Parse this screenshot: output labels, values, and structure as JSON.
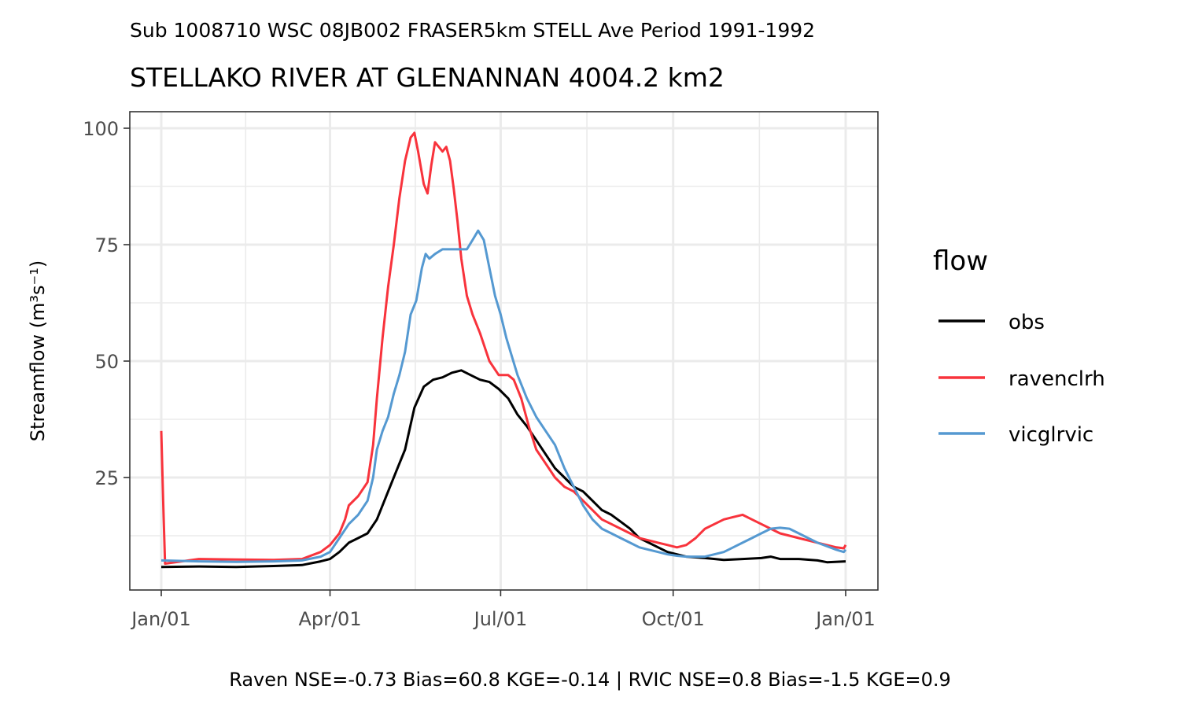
{
  "chart_data": {
    "type": "line",
    "subtitle": "Sub 1008710 WSC 08JB002 FRASER5km STELL Ave Period 1991-1992",
    "title": "STELLAKO RIVER AT GLENANNAN 4004.2 km2",
    "ylabel": "Streamflow (m³s⁻¹)",
    "xlabel": "",
    "caption": "Raven NSE=-0.73 Bias=60.8 KGE=-0.14 | RVIC NSE=0.8 Bias=-1.5 KGE=0.9",
    "xlim": [
      "Jan/01",
      "Jan/01"
    ],
    "x_ticks": [
      "Jan/01",
      "Apr/01",
      "Jul/01",
      "Oct/01",
      "Jan/01"
    ],
    "ylim": [
      0,
      100
    ],
    "y_ticks": [
      25,
      50,
      75,
      100
    ],
    "grid": true,
    "legend_title": "flow",
    "legend_position": "right",
    "series": [
      {
        "name": "obs",
        "color": "#000000",
        "points": [
          [
            0,
            5.8
          ],
          [
            20,
            5.9
          ],
          [
            40,
            5.8
          ],
          [
            60,
            6.0
          ],
          [
            75,
            6.2
          ],
          [
            85,
            7.0
          ],
          [
            90,
            7.5
          ],
          [
            95,
            9
          ],
          [
            100,
            11
          ],
          [
            105,
            12
          ],
          [
            110,
            13
          ],
          [
            115,
            16
          ],
          [
            120,
            21
          ],
          [
            125,
            26
          ],
          [
            130,
            31
          ],
          [
            135,
            40
          ],
          [
            140,
            44.5
          ],
          [
            145,
            46
          ],
          [
            150,
            46.5
          ],
          [
            155,
            47.5
          ],
          [
            160,
            48
          ],
          [
            165,
            47
          ],
          [
            170,
            46
          ],
          [
            175,
            45.5
          ],
          [
            180,
            44
          ],
          [
            185,
            42
          ],
          [
            190,
            38.5
          ],
          [
            195,
            36
          ],
          [
            200,
            33
          ],
          [
            205,
            30
          ],
          [
            210,
            27
          ],
          [
            215,
            25
          ],
          [
            220,
            23
          ],
          [
            225,
            22
          ],
          [
            230,
            20
          ],
          [
            235,
            18
          ],
          [
            240,
            17
          ],
          [
            245,
            15.5
          ],
          [
            250,
            14
          ],
          [
            255,
            12
          ],
          [
            260,
            11
          ],
          [
            265,
            10
          ],
          [
            270,
            9
          ],
          [
            275,
            8.5
          ],
          [
            280,
            8
          ],
          [
            290,
            7.7
          ],
          [
            300,
            7.3
          ],
          [
            310,
            7.5
          ],
          [
            320,
            7.7
          ],
          [
            325,
            8
          ],
          [
            330,
            7.5
          ],
          [
            340,
            7.5
          ],
          [
            350,
            7.2
          ],
          [
            355,
            6.8
          ],
          [
            365,
            7.0
          ]
        ]
      },
      {
        "name": "ravenclrh",
        "color": "#F8333C",
        "points": [
          [
            0,
            35
          ],
          [
            1,
            20
          ],
          [
            2,
            6.5
          ],
          [
            20,
            7.5
          ],
          [
            40,
            7.4
          ],
          [
            60,
            7.3
          ],
          [
            75,
            7.5
          ],
          [
            85,
            9
          ],
          [
            90,
            10.5
          ],
          [
            95,
            13
          ],
          [
            98,
            16
          ],
          [
            100,
            19
          ],
          [
            105,
            21
          ],
          [
            110,
            24
          ],
          [
            113,
            32
          ],
          [
            115,
            42
          ],
          [
            118,
            55
          ],
          [
            121,
            66
          ],
          [
            124,
            75
          ],
          [
            127,
            85
          ],
          [
            130,
            93
          ],
          [
            133,
            98
          ],
          [
            135,
            99
          ],
          [
            137,
            95
          ],
          [
            140,
            88
          ],
          [
            142,
            86
          ],
          [
            144,
            92
          ],
          [
            146,
            97
          ],
          [
            148,
            96
          ],
          [
            150,
            95
          ],
          [
            152,
            96
          ],
          [
            154,
            93
          ],
          [
            156,
            87
          ],
          [
            158,
            80
          ],
          [
            160,
            72
          ],
          [
            163,
            64
          ],
          [
            166,
            60
          ],
          [
            170,
            56
          ],
          [
            175,
            50
          ],
          [
            180,
            47
          ],
          [
            185,
            47
          ],
          [
            188,
            46
          ],
          [
            192,
            42
          ],
          [
            196,
            36
          ],
          [
            200,
            31
          ],
          [
            205,
            28
          ],
          [
            210,
            25
          ],
          [
            215,
            23
          ],
          [
            220,
            22
          ],
          [
            225,
            20
          ],
          [
            230,
            18
          ],
          [
            235,
            16
          ],
          [
            240,
            15
          ],
          [
            245,
            14
          ],
          [
            250,
            13
          ],
          [
            255,
            12
          ],
          [
            260,
            11.5
          ],
          [
            265,
            11
          ],
          [
            270,
            10.5
          ],
          [
            275,
            10
          ],
          [
            280,
            10.5
          ],
          [
            285,
            12
          ],
          [
            290,
            14
          ],
          [
            295,
            15
          ],
          [
            300,
            16
          ],
          [
            305,
            16.5
          ],
          [
            310,
            17
          ],
          [
            315,
            16
          ],
          [
            320,
            15
          ],
          [
            325,
            14
          ],
          [
            330,
            13
          ],
          [
            340,
            12
          ],
          [
            350,
            11
          ],
          [
            360,
            10
          ],
          [
            364,
            9.8
          ],
          [
            365,
            10.5
          ]
        ]
      },
      {
        "name": "vicglrvic",
        "color": "#5599D1",
        "points": [
          [
            0,
            7.2
          ],
          [
            20,
            7.0
          ],
          [
            40,
            6.9
          ],
          [
            60,
            7.0
          ],
          [
            75,
            7.2
          ],
          [
            85,
            8
          ],
          [
            90,
            9
          ],
          [
            95,
            12
          ],
          [
            100,
            15
          ],
          [
            105,
            17
          ],
          [
            110,
            20
          ],
          [
            113,
            25
          ],
          [
            115,
            31
          ],
          [
            118,
            35
          ],
          [
            121,
            38
          ],
          [
            124,
            43
          ],
          [
            127,
            47
          ],
          [
            130,
            52
          ],
          [
            133,
            60
          ],
          [
            136,
            63
          ],
          [
            139,
            70
          ],
          [
            141,
            73
          ],
          [
            143,
            72
          ],
          [
            146,
            73
          ],
          [
            150,
            74
          ],
          [
            155,
            74
          ],
          [
            160,
            74
          ],
          [
            163,
            74
          ],
          [
            166,
            76
          ],
          [
            169,
            78
          ],
          [
            172,
            76
          ],
          [
            175,
            70
          ],
          [
            178,
            64
          ],
          [
            181,
            60
          ],
          [
            184,
            55
          ],
          [
            187,
            51
          ],
          [
            190,
            47
          ],
          [
            195,
            42
          ],
          [
            200,
            38
          ],
          [
            205,
            35
          ],
          [
            210,
            32
          ],
          [
            215,
            27
          ],
          [
            220,
            23
          ],
          [
            225,
            19
          ],
          [
            230,
            16
          ],
          [
            235,
            14
          ],
          [
            240,
            13
          ],
          [
            245,
            12
          ],
          [
            250,
            11
          ],
          [
            255,
            10
          ],
          [
            260,
            9.5
          ],
          [
            265,
            9
          ],
          [
            270,
            8.5
          ],
          [
            275,
            8.2
          ],
          [
            280,
            8
          ],
          [
            290,
            8
          ],
          [
            300,
            9
          ],
          [
            305,
            10
          ],
          [
            310,
            11
          ],
          [
            315,
            12
          ],
          [
            320,
            13
          ],
          [
            325,
            14
          ],
          [
            330,
            14.2
          ],
          [
            335,
            14
          ],
          [
            340,
            13
          ],
          [
            345,
            12
          ],
          [
            350,
            11
          ],
          [
            360,
            9.5
          ],
          [
            364,
            9.0
          ],
          [
            365,
            9.5
          ]
        ]
      }
    ]
  }
}
